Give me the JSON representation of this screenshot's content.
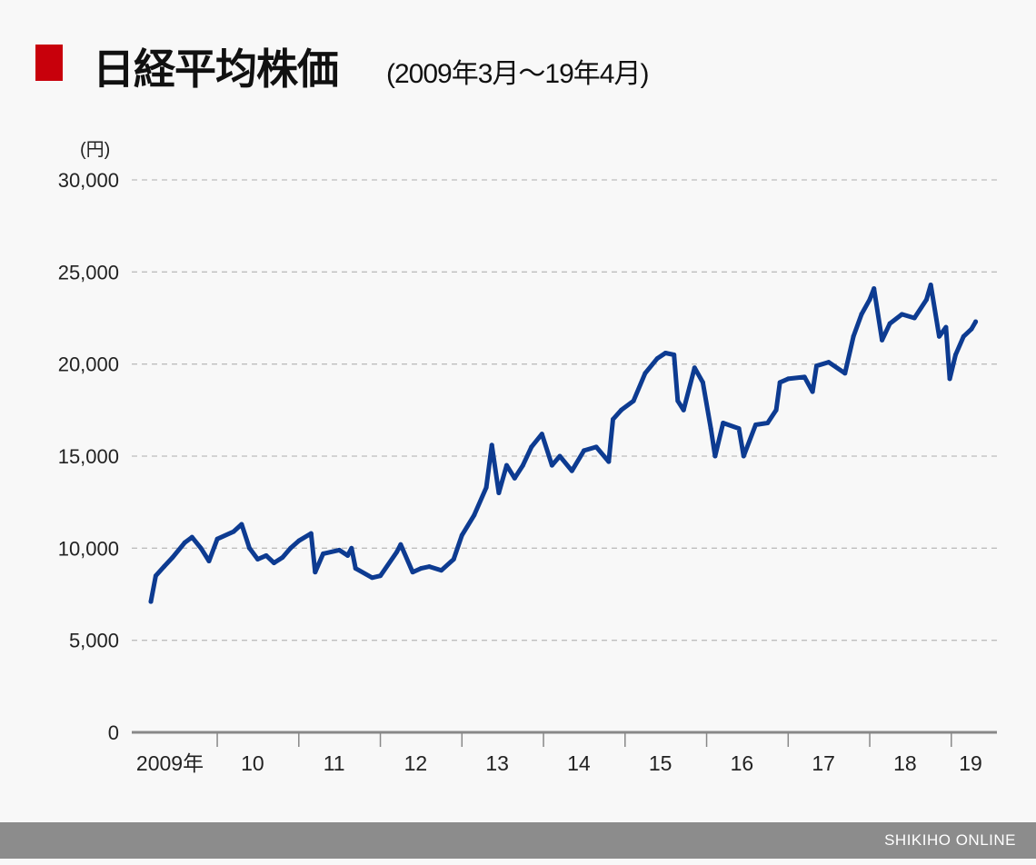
{
  "chart_data": {
    "type": "line",
    "title": "日経平均株価",
    "subtitle": "(2009年3月～19年4月)",
    "ylabel": "(円)",
    "ylim": [
      0,
      30000
    ],
    "yticks": [
      0,
      5000,
      10000,
      15000,
      20000,
      25000,
      30000
    ],
    "ytick_labels": [
      "0",
      "5,000",
      "10,000",
      "15,000",
      "20,000",
      "25,000",
      "30,000"
    ],
    "xlim": [
      "2009-01-01",
      "2019-07-15"
    ],
    "xtick_labels": [
      "2009年",
      "10",
      "11",
      "12",
      "13",
      "14",
      "15",
      "16",
      "17",
      "18",
      "19"
    ],
    "grid": "horizontal dashed",
    "line_color": "#0d3b91",
    "series": [
      {
        "x": [
          "2009-03-10",
          "2009-04-01",
          "2009-05-08",
          "2009-06-15",
          "2009-08-08",
          "2009-09-10",
          "2009-10-20",
          "2009-11-25",
          "2010-01-01",
          "2010-03-15",
          "2010-04-20",
          "2010-05-25",
          "2010-07-01",
          "2010-08-08",
          "2010-09-12",
          "2010-10-20",
          "2010-11-25",
          "2011-01-01",
          "2011-02-25",
          "2011-03-15",
          "2011-04-20",
          "2011-07-01",
          "2011-08-08",
          "2011-08-25",
          "2011-09-12",
          "2011-11-25",
          "2012-01-01",
          "2012-03-15",
          "2012-04-01",
          "2012-05-25",
          "2012-07-01",
          "2012-08-08",
          "2012-10-01",
          "2012-11-25",
          "2013-01-01",
          "2013-02-25",
          "2013-04-20",
          "2013-05-15",
          "2013-06-15",
          "2013-07-20",
          "2013-08-25",
          "2013-10-01",
          "2013-11-08",
          "2013-12-25",
          "2014-02-08",
          "2014-03-15",
          "2014-05-08",
          "2014-07-01",
          "2014-08-25",
          "2014-10-20",
          "2014-11-08",
          "2014-12-15",
          "2015-02-08",
          "2015-04-01",
          "2015-05-25",
          "2015-07-01",
          "2015-08-08",
          "2015-08-25",
          "2015-09-20",
          "2015-11-08",
          "2015-12-15",
          "2016-01-20",
          "2016-02-08",
          "2016-03-15",
          "2016-05-25",
          "2016-06-15",
          "2016-08-08",
          "2016-10-01",
          "2016-11-08",
          "2016-11-25",
          "2017-01-01",
          "2017-03-15",
          "2017-04-20",
          "2017-05-08",
          "2017-07-01",
          "2017-09-12",
          "2017-10-20",
          "2017-11-25",
          "2018-01-01",
          "2018-01-20",
          "2018-02-25",
          "2018-04-01",
          "2018-05-25",
          "2018-07-20",
          "2018-09-12",
          "2018-10-01",
          "2018-11-08",
          "2018-12-08",
          "2018-12-25",
          "2019-01-20",
          "2019-02-25",
          "2019-04-01",
          "2019-04-20"
        ],
        "y": [
          7100,
          8500,
          9000,
          9500,
          10300,
          10600,
          10000,
          9300,
          10500,
          10900,
          11300,
          10000,
          9400,
          9600,
          9200,
          9500,
          10000,
          10400,
          10800,
          8700,
          9700,
          9900,
          9600,
          10000,
          8900,
          8400,
          8500,
          9800,
          10200,
          8700,
          8900,
          9000,
          8800,
          9400,
          10700,
          11800,
          13300,
          15600,
          13000,
          14500,
          13800,
          14500,
          15500,
          16200,
          14500,
          15000,
          14200,
          15300,
          15500,
          14700,
          17000,
          17500,
          18000,
          19500,
          20300,
          20600,
          20500,
          18000,
          17500,
          19800,
          19000,
          16500,
          15000,
          16800,
          16500,
          15000,
          16700,
          16800,
          17500,
          19000,
          19200,
          19300,
          18500,
          19900,
          20100,
          19500,
          21500,
          22700,
          23500,
          24100,
          21300,
          22200,
          22700,
          22500,
          23500,
          24300,
          21500,
          22000,
          19200,
          20500,
          21500,
          21900,
          22300
        ]
      }
    ]
  },
  "footer": {
    "brand": "SHIKIHO ONLINE"
  }
}
